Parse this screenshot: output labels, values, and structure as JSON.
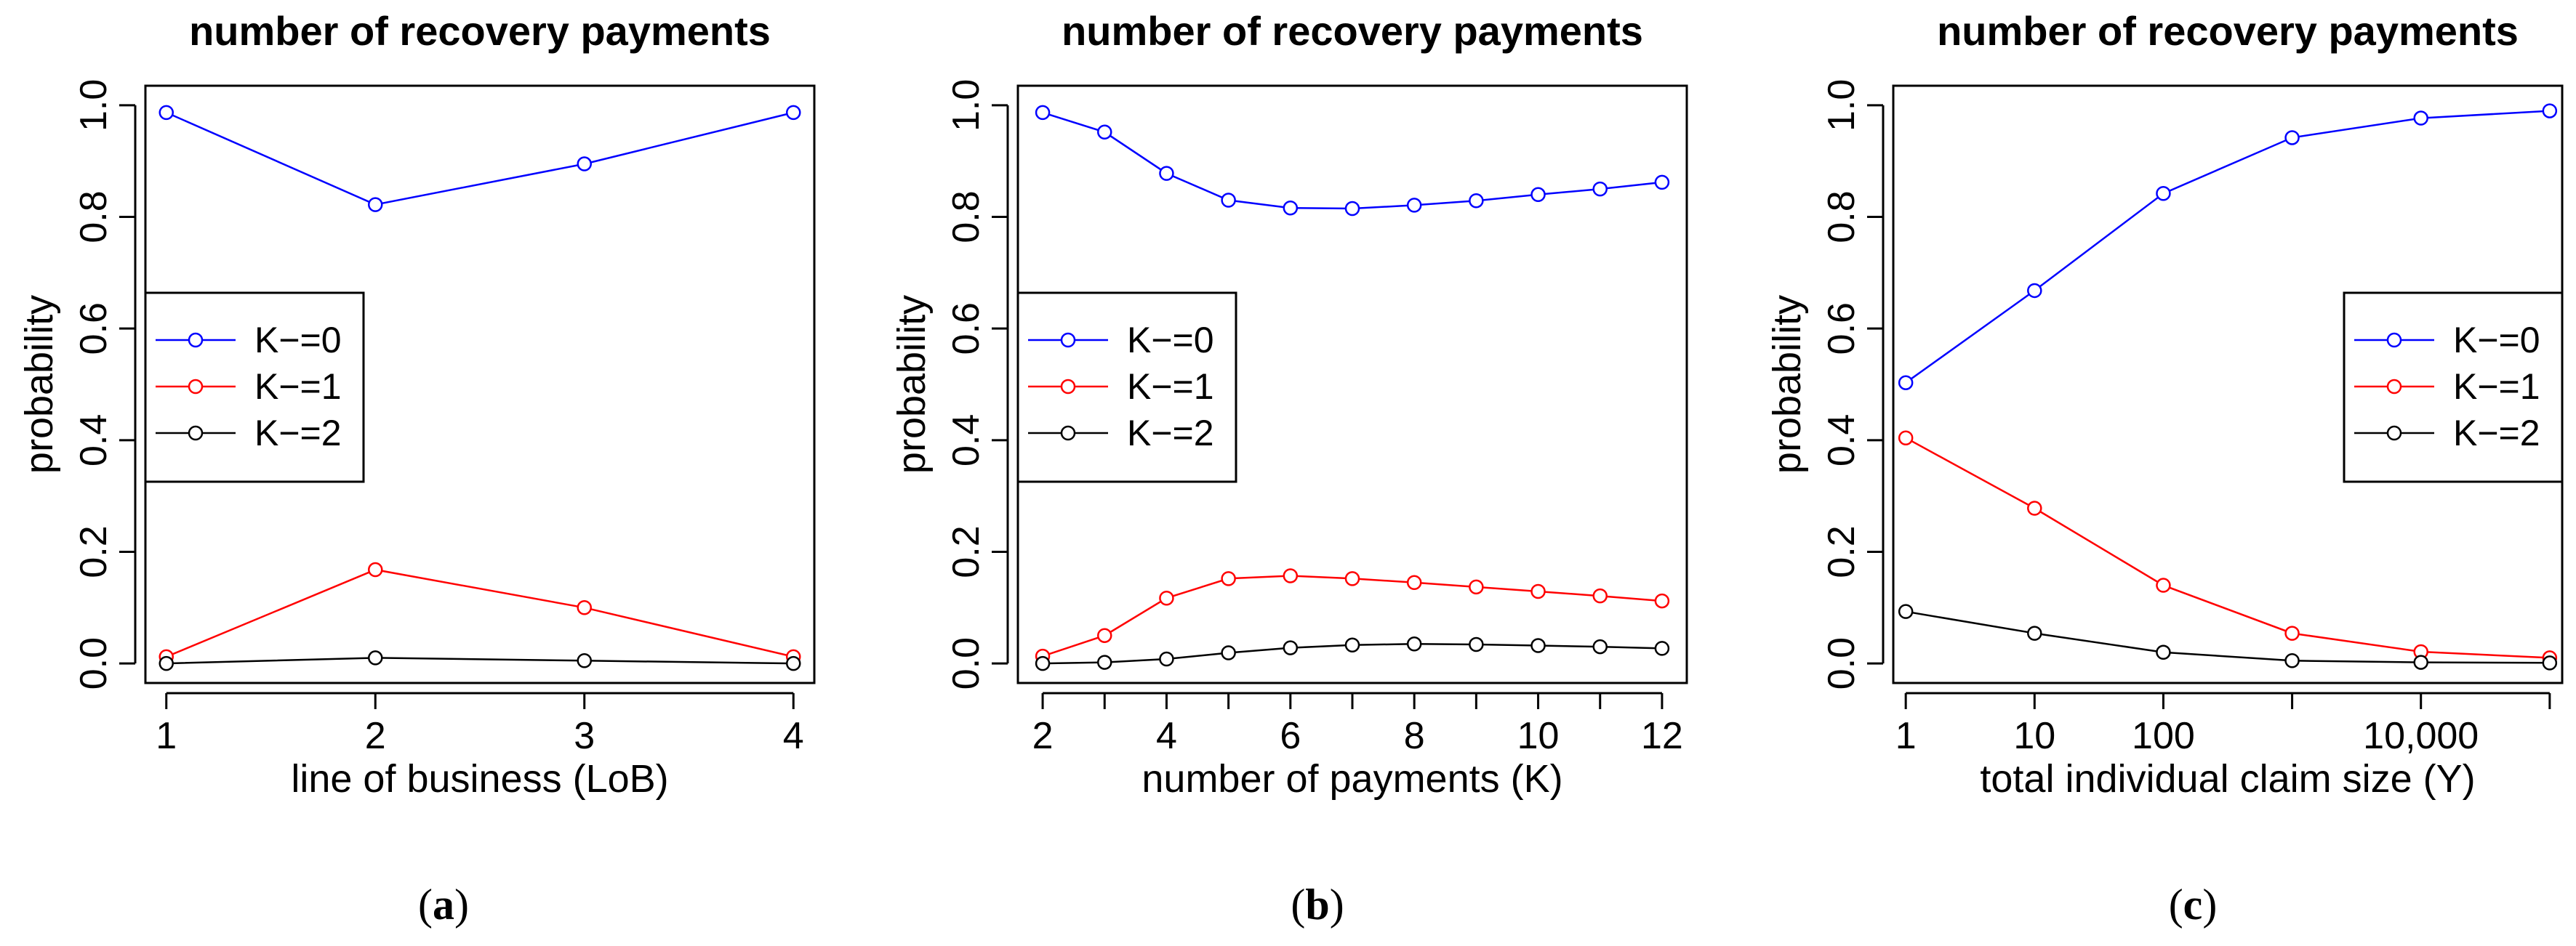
{
  "chart_data": [
    {
      "id": "a",
      "type": "line",
      "title": "number of recovery payments",
      "xlabel": "line of business (LoB)",
      "ylabel": "probability",
      "caption": "a",
      "x_scale": "linear",
      "xlim": [
        0.9,
        4.1
      ],
      "ylim": [
        -0.035,
        1.035
      ],
      "x_ticks": [
        1,
        2,
        3,
        4
      ],
      "x_tick_labels": [
        "1",
        "2",
        "3",
        "4"
      ],
      "y_ticks": [
        0,
        0.2,
        0.4,
        0.6,
        0.8,
        1.0
      ],
      "y_tick_labels": [
        "0.0",
        "0.2",
        "0.4",
        "0.6",
        "0.8",
        "1.0"
      ],
      "legend_position": "left",
      "x": [
        1,
        2,
        3,
        4
      ],
      "series": [
        {
          "name": "K−=0",
          "color": "#0000ff",
          "values": [
            0.987,
            0.822,
            0.895,
            0.987
          ]
        },
        {
          "name": "K−=1",
          "color": "#ff0000",
          "values": [
            0.012,
            0.168,
            0.1,
            0.012
          ]
        },
        {
          "name": "K−=2",
          "color": "#000000",
          "values": [
            0.0,
            0.01,
            0.005,
            0.0
          ]
        }
      ]
    },
    {
      "id": "b",
      "type": "line",
      "title": "number of recovery payments",
      "xlabel": "number of payments (K)",
      "ylabel": "probability",
      "caption": "b",
      "x_scale": "linear",
      "xlim": [
        1.6,
        12.4
      ],
      "ylim": [
        -0.035,
        1.035
      ],
      "x_ticks": [
        2,
        3,
        4,
        5,
        6,
        7,
        8,
        9,
        10,
        11,
        12
      ],
      "x_tick_labels": [
        "2",
        "",
        "4",
        "",
        "6",
        "",
        "8",
        "",
        "10",
        "",
        "12"
      ],
      "y_ticks": [
        0,
        0.2,
        0.4,
        0.6,
        0.8,
        1.0
      ],
      "y_tick_labels": [
        "0.0",
        "0.2",
        "0.4",
        "0.6",
        "0.8",
        "1.0"
      ],
      "legend_position": "left",
      "x": [
        2,
        3,
        4,
        5,
        6,
        7,
        8,
        9,
        10,
        11,
        12
      ],
      "series": [
        {
          "name": "K−=0",
          "color": "#0000ff",
          "values": [
            0.987,
            0.952,
            0.878,
            0.83,
            0.816,
            0.815,
            0.821,
            0.829,
            0.84,
            0.85,
            0.862
          ]
        },
        {
          "name": "K−=1",
          "color": "#ff0000",
          "values": [
            0.013,
            0.05,
            0.117,
            0.152,
            0.157,
            0.152,
            0.145,
            0.137,
            0.129,
            0.121,
            0.112
          ]
        },
        {
          "name": "K−=2",
          "color": "#000000",
          "values": [
            0.0,
            0.002,
            0.008,
            0.019,
            0.028,
            0.033,
            0.035,
            0.034,
            0.032,
            0.03,
            0.027
          ]
        }
      ]
    },
    {
      "id": "c",
      "type": "line",
      "title": "number of recovery payments",
      "xlabel": "total individual claim size (Y)",
      "ylabel": "probability",
      "caption": "c",
      "x_scale": "log10",
      "xlim": [
        0.8,
        125000
      ],
      "ylim": [
        -0.035,
        1.035
      ],
      "x_ticks": [
        1,
        10,
        100,
        1000,
        10000,
        100000
      ],
      "x_tick_labels": [
        "1",
        "10",
        "100",
        "",
        "10,000",
        ""
      ],
      "y_ticks": [
        0,
        0.2,
        0.4,
        0.6,
        0.8,
        1.0
      ],
      "y_tick_labels": [
        "0.0",
        "0.2",
        "0.4",
        "0.6",
        "0.8",
        "1.0"
      ],
      "legend_position": "right",
      "x": [
        1,
        10,
        100,
        1000,
        10000,
        100000
      ],
      "series": [
        {
          "name": "K−=0",
          "color": "#0000ff",
          "values": [
            0.503,
            0.668,
            0.842,
            0.942,
            0.977,
            0.99
          ]
        },
        {
          "name": "K−=1",
          "color": "#ff0000",
          "values": [
            0.404,
            0.278,
            0.14,
            0.054,
            0.021,
            0.01
          ]
        },
        {
          "name": "K−=2",
          "color": "#000000",
          "values": [
            0.093,
            0.054,
            0.02,
            0.005,
            0.002,
            0.001
          ]
        }
      ]
    }
  ]
}
